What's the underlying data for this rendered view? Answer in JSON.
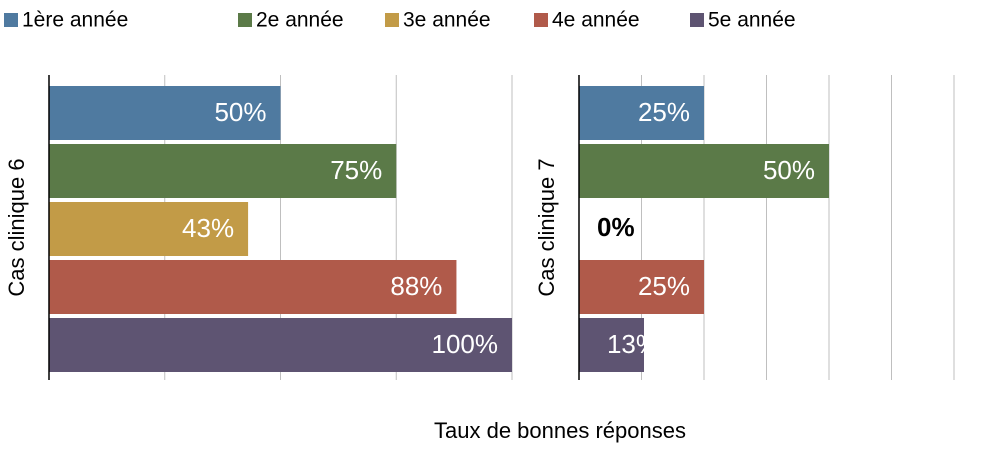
{
  "legend": [
    {
      "name": "1ère année",
      "color": "#4f7aa0"
    },
    {
      "name": "2e année",
      "color": "#5b7a48"
    },
    {
      "name": "3e année",
      "color": "#c29b47"
    },
    {
      "name": "4e année",
      "color": "#b05a4a"
    },
    {
      "name": "5e année",
      "color": "#5e5472"
    }
  ],
  "x_label": "Taux de bonnes réponses",
  "chart_data": [
    {
      "type": "bar",
      "orientation": "horizontal",
      "ylabel": "Cas clinique 6",
      "values": [
        50,
        75,
        43,
        88,
        100
      ],
      "value_labels": [
        "50%",
        "75%",
        "43%",
        "88%",
        "100%"
      ],
      "xlim": [
        0,
        100
      ],
      "xticks": [
        0,
        25,
        50,
        75,
        100
      ],
      "grid": true
    },
    {
      "type": "bar",
      "orientation": "horizontal",
      "ylabel": "Cas clinique 7",
      "values": [
        25,
        50,
        0,
        25,
        13
      ],
      "value_labels": [
        "25%",
        "50%",
        "0%",
        "25%",
        "13%"
      ],
      "xlim": [
        0,
        75
      ],
      "xticks": [
        0,
        12.5,
        25,
        37.5,
        50,
        62.5,
        75
      ],
      "grid": true
    }
  ]
}
